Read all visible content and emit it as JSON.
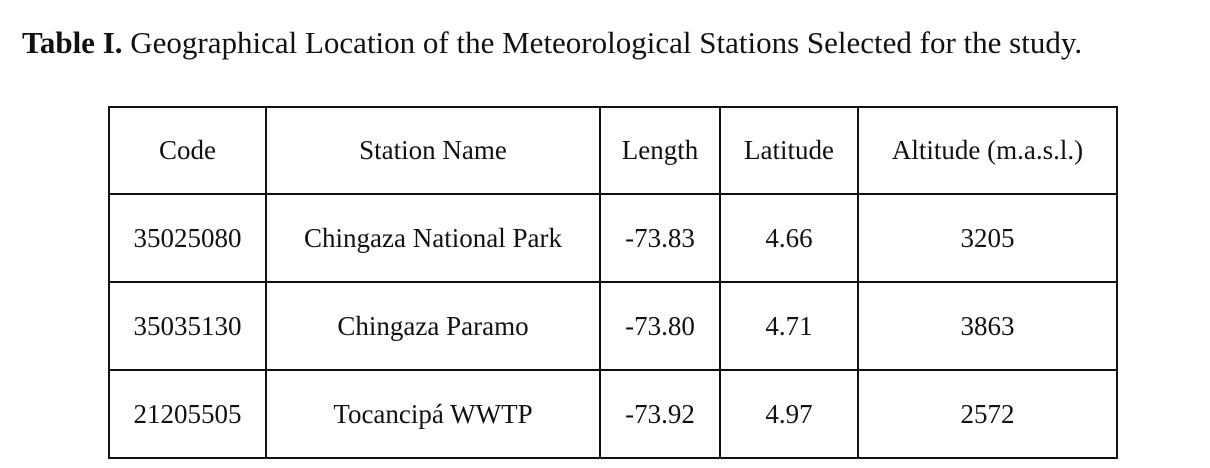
{
  "caption": {
    "label": "Table I.",
    "text": " Geographical Location of the Meteorological Stations Selected for the study."
  },
  "table": {
    "headers": [
      "Code",
      "Station Name",
      "Length",
      "Latitude",
      "Altitude (m.a.s.l.)"
    ],
    "rows": [
      [
        "35025080",
        "Chingaza National Park",
        "-73.83",
        "4.66",
        "3205"
      ],
      [
        "35035130",
        "Chingaza Paramo",
        "-73.80",
        "4.71",
        "3863"
      ],
      [
        "21205505",
        "Tocancipá WWTP",
        "-73.92",
        "4.97",
        "2572"
      ]
    ]
  }
}
